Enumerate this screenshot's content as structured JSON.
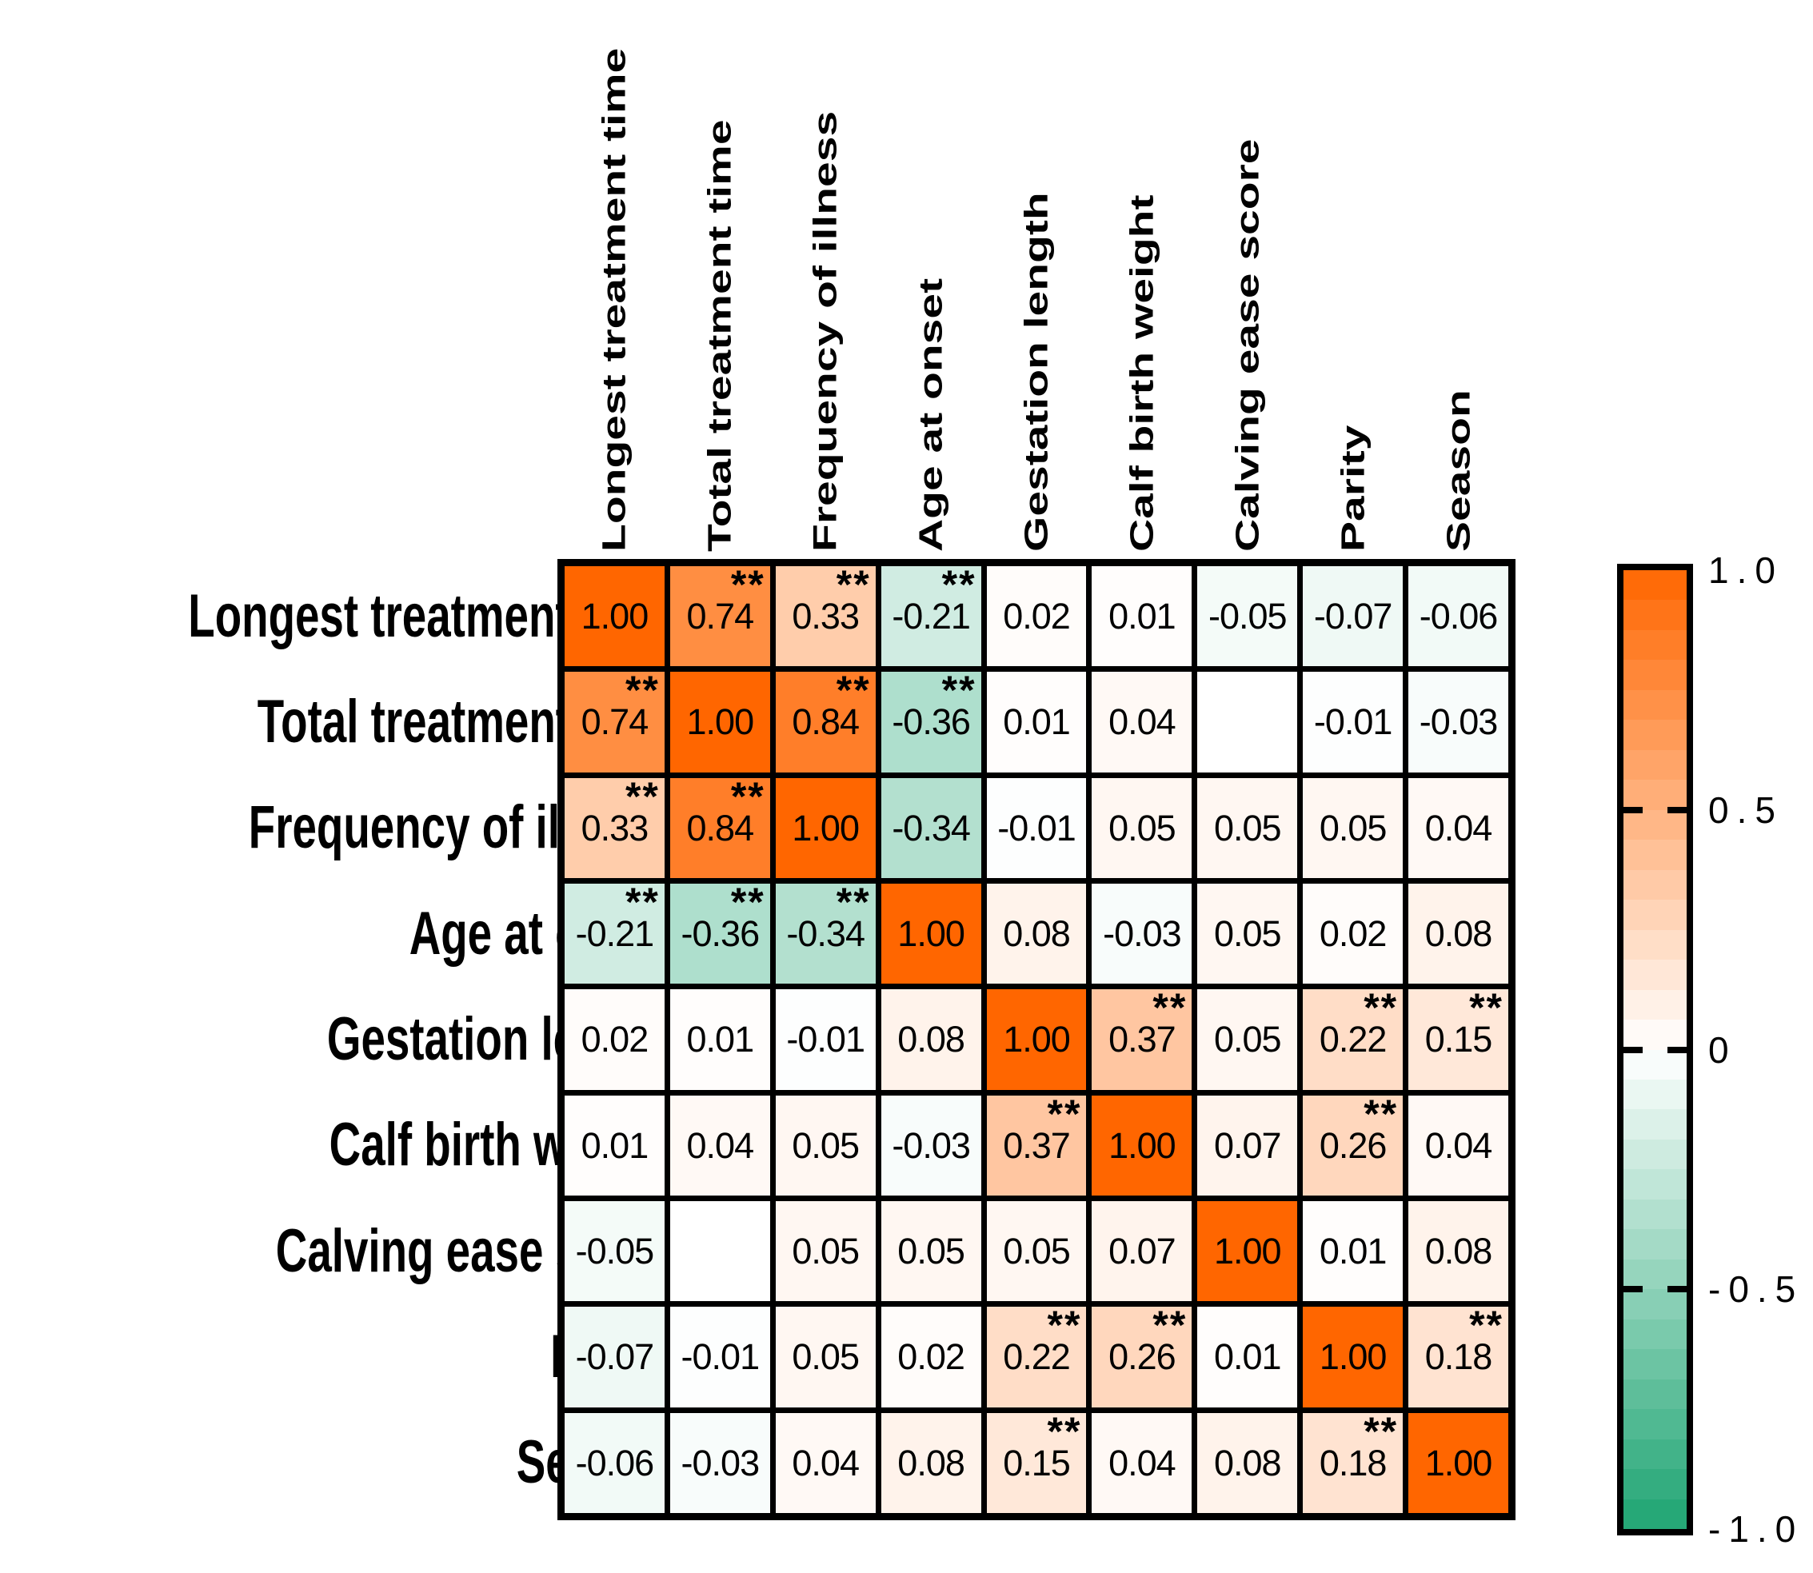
{
  "figure": {
    "kind": "correlation-matrix-heatmap",
    "title": ""
  },
  "chart_data": {
    "type": "heatmap",
    "title": "",
    "categories": [
      "Longest treatment time",
      "Total treatment time",
      "Frequency of illness",
      "Age at onset",
      "Gestation length",
      "Calf birth weight",
      "Calving ease score",
      "Parity",
      "Season"
    ],
    "matrix": [
      [
        1.0,
        0.74,
        0.33,
        -0.21,
        0.02,
        0.01,
        -0.05,
        -0.07,
        -0.06
      ],
      [
        0.74,
        1.0,
        0.84,
        -0.36,
        0.01,
        0.04,
        null,
        -0.01,
        -0.03
      ],
      [
        0.33,
        0.84,
        1.0,
        -0.34,
        -0.01,
        0.05,
        0.05,
        0.05,
        0.04
      ],
      [
        -0.21,
        -0.36,
        -0.34,
        1.0,
        0.08,
        -0.03,
        0.05,
        0.02,
        0.08
      ],
      [
        0.02,
        0.01,
        -0.01,
        0.08,
        1.0,
        0.37,
        0.05,
        0.22,
        0.15
      ],
      [
        0.01,
        0.04,
        0.05,
        -0.03,
        0.37,
        1.0,
        0.07,
        0.26,
        0.04
      ],
      [
        -0.05,
        null,
        0.05,
        0.05,
        0.05,
        0.07,
        1.0,
        0.01,
        0.08
      ],
      [
        -0.07,
        -0.01,
        0.05,
        0.02,
        0.22,
        0.26,
        0.01,
        1.0,
        0.18
      ],
      [
        -0.06,
        -0.03,
        0.04,
        0.08,
        0.15,
        0.04,
        0.08,
        0.18,
        1.0
      ]
    ],
    "significance_marker": "**",
    "significant": [
      [
        0,
        1,
        1,
        1,
        0,
        0,
        0,
        0,
        0
      ],
      [
        1,
        0,
        1,
        1,
        0,
        0,
        0,
        0,
        0
      ],
      [
        1,
        1,
        0,
        0,
        0,
        0,
        0,
        0,
        0
      ],
      [
        1,
        1,
        1,
        0,
        0,
        0,
        0,
        0,
        0
      ],
      [
        0,
        0,
        0,
        0,
        0,
        1,
        0,
        1,
        1
      ],
      [
        0,
        0,
        0,
        0,
        1,
        0,
        0,
        1,
        0
      ],
      [
        0,
        0,
        0,
        0,
        0,
        0,
        0,
        0,
        0
      ],
      [
        0,
        0,
        0,
        0,
        1,
        1,
        0,
        0,
        1
      ],
      [
        0,
        0,
        0,
        0,
        1,
        0,
        0,
        1,
        0
      ]
    ],
    "value_decimals": 2,
    "axis_range": [
      -1,
      1
    ],
    "colorbar": {
      "position": "right",
      "tick_labels": [
        "1.0",
        "0.5",
        "0",
        "-0.5",
        "-1.0"
      ],
      "tick_values": [
        1.0,
        0.5,
        0,
        -0.5,
        -1.0
      ],
      "vmax": 1,
      "vmin": -1,
      "positive_color": "#FF6600",
      "zero_color": "#FFFFFF",
      "negative_color": "#1FA573",
      "segments": 32
    }
  }
}
